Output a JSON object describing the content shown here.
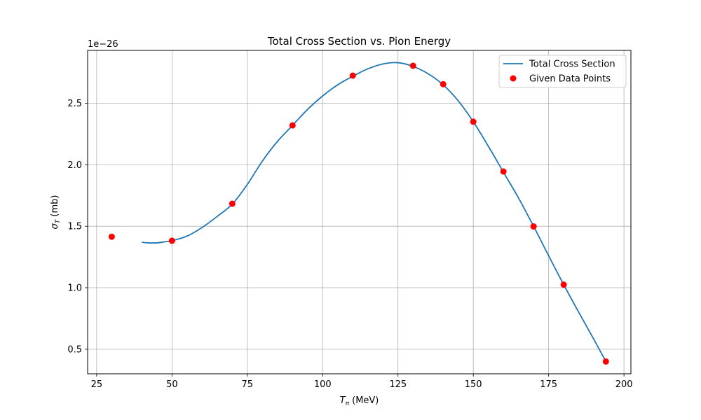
{
  "chart_data": {
    "type": "line",
    "title": "Total Cross Section vs. Pion Energy",
    "xlabel": "T_π (MeV)",
    "xlabel_main": "T",
    "xlabel_sub": "π",
    "xlabel_rest": " (MeV)",
    "ylabel": "σ_T (mb)",
    "ylabel_main": "σ",
    "ylabel_sub": "T",
    "ylabel_rest": " (mb)",
    "y_offset_label": "1e−26",
    "xlim": [
      22.0,
      202.3
    ],
    "ylim": [
      0.3,
      2.93
    ],
    "xticks": [
      25,
      50,
      75,
      100,
      125,
      150,
      175,
      200
    ],
    "xtick_labels": [
      "25",
      "50",
      "75",
      "100",
      "125",
      "150",
      "175",
      "200"
    ],
    "yticks": [
      0.5,
      1.0,
      1.5,
      2.0,
      2.5
    ],
    "ytick_labels": [
      "0.5",
      "1.0",
      "1.5",
      "2.0",
      "2.5"
    ],
    "grid": true,
    "legend_position": "top-right",
    "series": [
      {
        "name": "Total Cross Section",
        "kind": "line",
        "color": "#1f77b4",
        "x": [
          40,
          42,
          45,
          48,
          50,
          55,
          60,
          65,
          70,
          75,
          80,
          85,
          90,
          95,
          100,
          105,
          110,
          115,
          120,
          125,
          130,
          135,
          140,
          145,
          150,
          155,
          160,
          165,
          170,
          175,
          180,
          185,
          190,
          194
        ],
        "y": [
          1.37,
          1.365,
          1.365,
          1.375,
          1.382,
          1.42,
          1.49,
          1.58,
          1.68,
          1.84,
          2.03,
          2.19,
          2.32,
          2.45,
          2.56,
          2.65,
          2.72,
          2.78,
          2.82,
          2.83,
          2.8,
          2.74,
          2.65,
          2.52,
          2.35,
          2.15,
          1.94,
          1.73,
          1.5,
          1.26,
          1.025,
          0.8,
          0.58,
          0.4
        ]
      },
      {
        "name": "Given Data Points",
        "kind": "scatter",
        "color": "#ff0000",
        "x": [
          30,
          50,
          70,
          90,
          110,
          130,
          140,
          150,
          160,
          170,
          180,
          194
        ],
        "y": [
          1.415,
          1.382,
          1.683,
          2.32,
          2.725,
          2.805,
          2.655,
          2.35,
          1.945,
          1.498,
          1.025,
          0.4
        ]
      }
    ]
  }
}
